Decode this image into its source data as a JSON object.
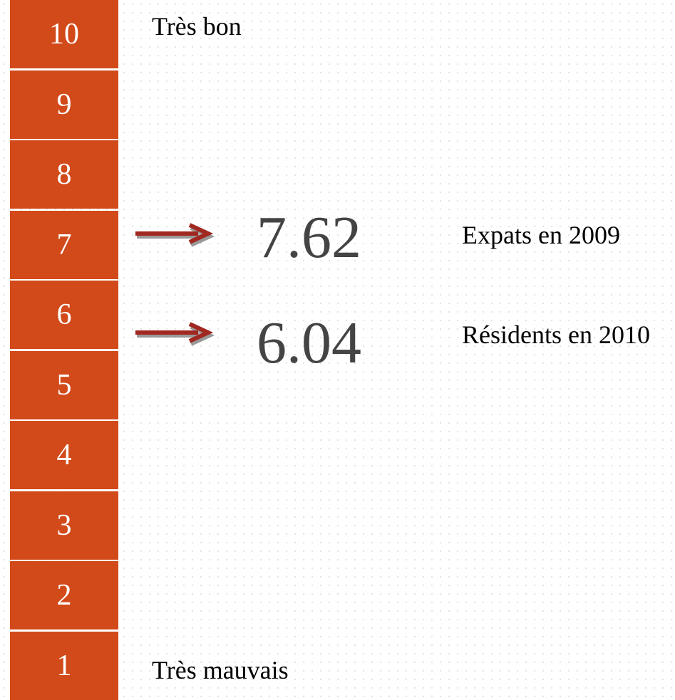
{
  "scale": {
    "levels": [
      10,
      9,
      8,
      7,
      6,
      5,
      4,
      3,
      2,
      1
    ],
    "top_label": "Très bon",
    "bottom_label": "Très mauvais"
  },
  "results": [
    {
      "value": "7.62",
      "label": "Expats en 2009"
    },
    {
      "value": "6.04",
      "label": "Résidents en 2010"
    }
  ]
}
